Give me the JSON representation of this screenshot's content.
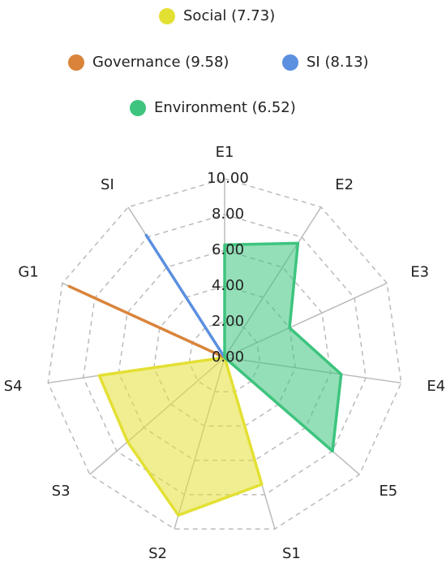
{
  "chart_data": {
    "type": "radar",
    "categories": [
      "E1",
      "E2",
      "E3",
      "E4",
      "E5",
      "S1",
      "S2",
      "S3",
      "S4",
      "G1",
      "SI"
    ],
    "series": [
      {
        "name": "Social (7.73)",
        "color": "#e3e034",
        "values": [
          0,
          0,
          0,
          0,
          0,
          7.4,
          9.2,
          7.2,
          7.1,
          0,
          0
        ]
      },
      {
        "name": "Governance (9.58)",
        "color": "#d9843a",
        "values": [
          0,
          0,
          0,
          0,
          0,
          0,
          0,
          0,
          0,
          9.58,
          0
        ]
      },
      {
        "name": "SI (8.13)",
        "color": "#5b8fe0",
        "values": [
          0,
          0,
          0,
          0,
          0,
          0,
          0,
          0,
          0,
          0,
          8.13
        ]
      },
      {
        "name": "Environment (6.52)",
        "color": "#3dc47e",
        "values": [
          6.3,
          7.6,
          4.0,
          6.6,
          8.0,
          0,
          0,
          0,
          0,
          0,
          0
        ]
      }
    ],
    "rlim": [
      0,
      10
    ],
    "rticks": [
      {
        "value": 0,
        "label": "0.00"
      },
      {
        "value": 2,
        "label": "2.00"
      },
      {
        "value": 4,
        "label": "4.00"
      },
      {
        "value": 6,
        "label": "6.00"
      },
      {
        "value": 8,
        "label": "8.00"
      },
      {
        "value": 10,
        "label": "10.00"
      }
    ],
    "grid": true
  }
}
